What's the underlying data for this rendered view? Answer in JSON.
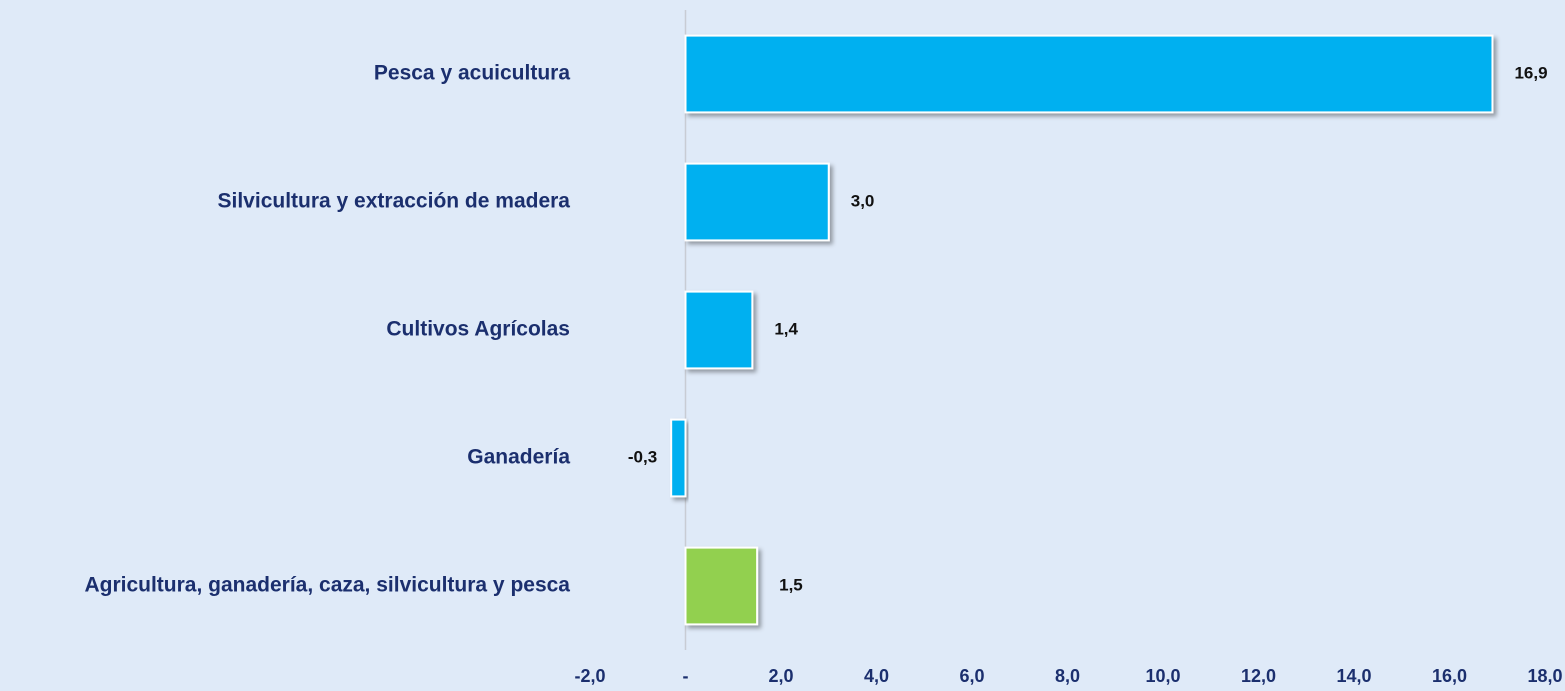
{
  "chart_data": {
    "type": "barh",
    "categories": [
      "Pesca y acuicultura",
      "Silvicultura y extracción de madera",
      "Cultivos Agrícolas",
      "Ganadería",
      "Agricultura, ganadería, caza, silvicultura y pesca"
    ],
    "values": [
      16.9,
      3.0,
      1.4,
      -0.3,
      1.5
    ],
    "value_labels": [
      "16,9",
      "3,0",
      "1,4",
      "-0,3",
      "1,5"
    ],
    "colors": [
      "#00b0f0",
      "#00b0f0",
      "#00b0f0",
      "#00b0f0",
      "#92d050"
    ],
    "xlim": [
      -2,
      18
    ],
    "xticks": [
      {
        "value": -2,
        "label": "-2,0"
      },
      {
        "value": 0,
        "label": "-"
      },
      {
        "value": 2,
        "label": "2,0"
      },
      {
        "value": 4,
        "label": "4,0"
      },
      {
        "value": 6,
        "label": "6,0"
      },
      {
        "value": 8,
        "label": "8,0"
      },
      {
        "value": 10,
        "label": "10,0"
      },
      {
        "value": 12,
        "label": "12,0"
      },
      {
        "value": 14,
        "label": "14,0"
      },
      {
        "value": 16,
        "label": "16,0"
      },
      {
        "value": 18,
        "label": "18,0"
      }
    ],
    "grid": false
  }
}
